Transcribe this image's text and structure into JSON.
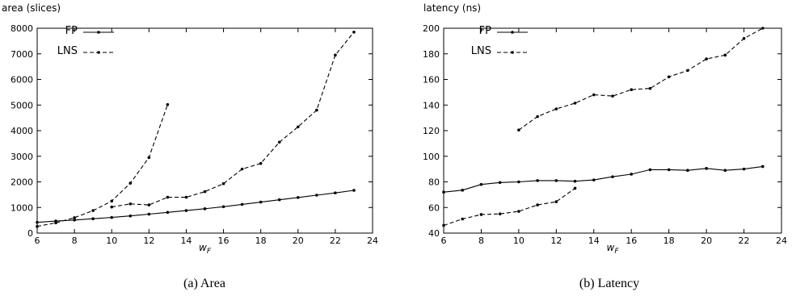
{
  "chart_data": [
    {
      "type": "line",
      "ylabel": "area (slices)",
      "xlabel": "w",
      "xlabel_sub": "F",
      "caption": "(a)  Area",
      "xlim": [
        6,
        24
      ],
      "ylim": [
        0,
        8000
      ],
      "xticks": [
        6,
        8,
        10,
        12,
        14,
        16,
        18,
        20,
        22,
        24
      ],
      "yticks": [
        0,
        1000,
        2000,
        3000,
        4000,
        5000,
        6000,
        7000,
        8000
      ],
      "legend": "top-left",
      "series": [
        {
          "name": "FP",
          "style": "solid",
          "segments": [
            {
              "x": [
                6,
                7,
                8,
                9,
                10,
                11,
                12,
                13,
                14,
                15,
                16,
                17,
                18,
                19,
                20,
                21,
                22,
                23
              ],
              "y": [
                420,
                470,
                510,
                560,
                610,
                670,
                740,
                810,
                880,
                950,
                1030,
                1120,
                1210,
                1300,
                1390,
                1480,
                1570,
                1670
              ]
            }
          ]
        },
        {
          "name": "LNS",
          "style": "dashed",
          "segments": [
            {
              "x": [
                6,
                7,
                8,
                9,
                10,
                11,
                12,
                13
              ],
              "y": [
                260,
                400,
                600,
                880,
                1250,
                1950,
                2950,
                5020
              ]
            },
            {
              "x": [
                10,
                11,
                12,
                13,
                14,
                15,
                16,
                17,
                18,
                19,
                20,
                21,
                22,
                23
              ],
              "y": [
                1020,
                1140,
                1100,
                1400,
                1400,
                1620,
                1930,
                2500,
                2720,
                3550,
                4150,
                4800,
                6950,
                7850
              ]
            }
          ]
        }
      ]
    },
    {
      "type": "line",
      "ylabel": "latency (ns)",
      "xlabel": "w",
      "xlabel_sub": "F",
      "caption": "(b)  Latency",
      "xlim": [
        6,
        24
      ],
      "ylim": [
        40,
        200
      ],
      "xticks": [
        6,
        8,
        10,
        12,
        14,
        16,
        18,
        20,
        22,
        24
      ],
      "yticks": [
        40,
        60,
        80,
        100,
        120,
        140,
        160,
        180,
        200
      ],
      "legend": "top-left",
      "series": [
        {
          "name": "FP",
          "style": "solid",
          "segments": [
            {
              "x": [
                6,
                7,
                8,
                9,
                10,
                11,
                12,
                13,
                14,
                15,
                16,
                17,
                18,
                19,
                20,
                21,
                22,
                23
              ],
              "y": [
                72,
                73.5,
                78,
                79.5,
                80,
                81,
                81,
                80.5,
                81.5,
                84,
                86,
                89.5,
                89.5,
                89,
                90.5,
                89,
                90,
                92
              ]
            }
          ]
        },
        {
          "name": "LNS",
          "style": "dashed",
          "segments": [
            {
              "x": [
                6,
                7,
                8,
                9,
                10,
                11,
                12,
                13
              ],
              "y": [
                46,
                51,
                54.5,
                55,
                57,
                62,
                64.5,
                75
              ]
            },
            {
              "x": [
                10,
                11,
                12,
                13,
                14,
                15,
                16,
                17,
                18,
                19,
                20,
                21,
                22,
                23
              ],
              "y": [
                120.5,
                131,
                137,
                141.5,
                148,
                147,
                152,
                153,
                162,
                167,
                176,
                179,
                192,
                200
              ]
            }
          ]
        }
      ]
    }
  ]
}
